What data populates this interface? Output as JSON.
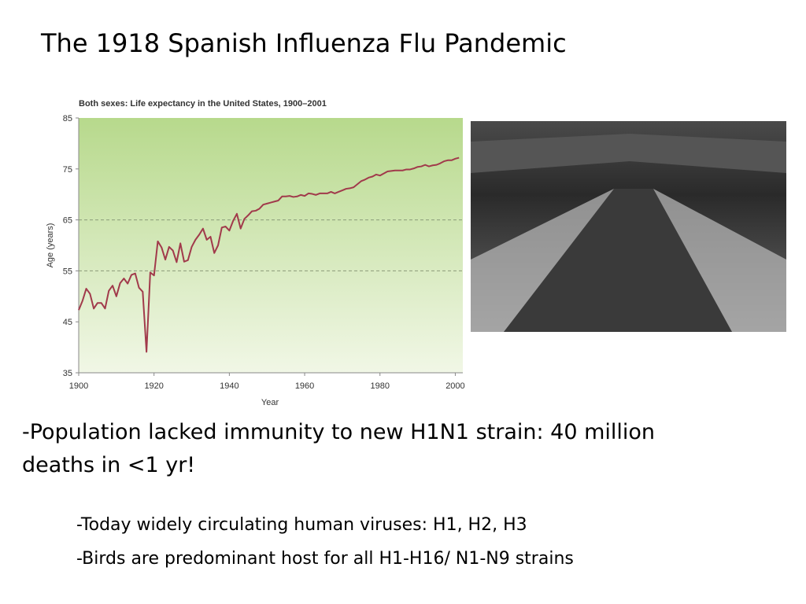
{
  "slide": {
    "title": "The 1918 Spanish Influenza Flu Pandemic",
    "bullets": [
      "-Population lacked immunity to new H1N1 strain: 40 million",
      "deaths in <1 yr!"
    ],
    "sub_bullets": [
      "-Today widely circulating human viruses: H1, H2, H3",
      "-Birds are predominant host for all H1-H16/ N1-N9 strains"
    ]
  },
  "chart_data": {
    "type": "line",
    "title": "Both sexes: Life expectancy in the United States, 1900–2001",
    "x_label": "Year",
    "y_label": "Age (years)",
    "color": "#a13a4b",
    "x": [
      1900,
      1901,
      1902,
      1903,
      1904,
      1905,
      1906,
      1907,
      1908,
      1909,
      1910,
      1911,
      1912,
      1913,
      1914,
      1915,
      1916,
      1917,
      1918,
      1919,
      1920,
      1921,
      1922,
      1923,
      1924,
      1925,
      1926,
      1927,
      1928,
      1929,
      1930,
      1931,
      1932,
      1933,
      1934,
      1935,
      1936,
      1937,
      1938,
      1939,
      1940,
      1941,
      1942,
      1943,
      1944,
      1945,
      1946,
      1947,
      1948,
      1949,
      1950,
      1951,
      1952,
      1953,
      1954,
      1955,
      1956,
      1957,
      1958,
      1959,
      1960,
      1961,
      1962,
      1963,
      1964,
      1965,
      1966,
      1967,
      1968,
      1969,
      1970,
      1971,
      1972,
      1973,
      1974,
      1975,
      1976,
      1977,
      1978,
      1979,
      1980,
      1981,
      1982,
      1983,
      1984,
      1985,
      1986,
      1987,
      1988,
      1989,
      1990,
      1991,
      1992,
      1993,
      1994,
      1995,
      1996,
      1997,
      1998,
      1999,
      2000,
      2001
    ],
    "values": [
      47.3,
      49.1,
      51.5,
      50.5,
      47.6,
      48.7,
      48.7,
      47.6,
      51.1,
      52.1,
      50.0,
      52.6,
      53.5,
      52.5,
      54.2,
      54.5,
      51.7,
      50.9,
      39.1,
      54.7,
      54.1,
      60.8,
      59.6,
      57.2,
      59.7,
      59.0,
      56.7,
      60.4,
      56.8,
      57.1,
      59.7,
      61.1,
      62.1,
      63.3,
      61.1,
      61.7,
      58.5,
      60.0,
      63.5,
      63.7,
      62.9,
      64.8,
      66.2,
      63.3,
      65.2,
      65.9,
      66.7,
      66.8,
      67.2,
      68.0,
      68.2,
      68.4,
      68.6,
      68.8,
      69.6,
      69.6,
      69.7,
      69.5,
      69.6,
      69.9,
      69.7,
      70.2,
      70.1,
      69.9,
      70.2,
      70.2,
      70.2,
      70.5,
      70.2,
      70.5,
      70.8,
      71.1,
      71.2,
      71.4,
      72.0,
      72.6,
      72.9,
      73.3,
      73.5,
      73.9,
      73.7,
      74.1,
      74.5,
      74.6,
      74.7,
      74.7,
      74.7,
      74.9,
      74.9,
      75.1,
      75.4,
      75.5,
      75.8,
      75.5,
      75.7,
      75.8,
      76.1,
      76.5,
      76.7,
      76.7,
      77.0,
      77.2
    ],
    "xlim": [
      1900,
      2002
    ],
    "ylim": [
      35,
      85
    ],
    "xticks": [
      1900,
      1920,
      1940,
      1960,
      1980,
      2000
    ],
    "yticks": [
      35,
      45,
      55,
      65,
      75,
      85
    ],
    "grid_lines": [
      55,
      65
    ]
  }
}
